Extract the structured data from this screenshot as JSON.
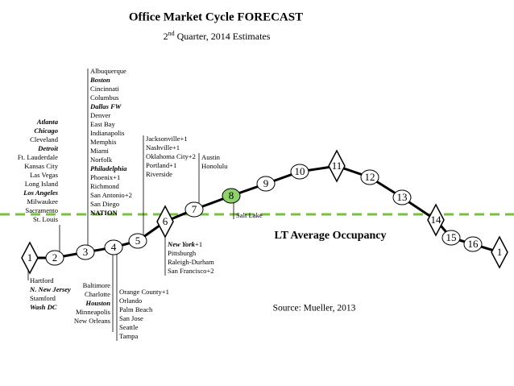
{
  "header": {
    "title": "Office Market Cycle FORECAST",
    "subtitle": {
      "number": "2",
      "suffix": "nd",
      "rest": "Quarter, 2014 Estimates"
    }
  },
  "reference_line": {
    "label": "LT Average Occupancy",
    "color": "#7ac143"
  },
  "source": "Source: Mueller, 2013",
  "points": [
    {
      "label": "1",
      "shape": "diamond"
    },
    {
      "label": "2",
      "shape": "circle"
    },
    {
      "label": "3",
      "shape": "circle"
    },
    {
      "label": "4",
      "shape": "circle"
    },
    {
      "label": "5",
      "shape": "circle"
    },
    {
      "label": "6",
      "shape": "diamond"
    },
    {
      "label": "7",
      "shape": "circle"
    },
    {
      "label": "8",
      "shape": "circle",
      "color": "#8fd16a"
    },
    {
      "label": "9",
      "shape": "circle"
    },
    {
      "label": "10",
      "shape": "circle"
    },
    {
      "label": "11",
      "shape": "diamond"
    },
    {
      "label": "12",
      "shape": "circle"
    },
    {
      "label": "13",
      "shape": "circle"
    },
    {
      "label": "14",
      "shape": "diamond"
    },
    {
      "label": "15",
      "shape": "circle"
    },
    {
      "label": "16",
      "shape": "circle"
    },
    {
      "label": "1",
      "shape": "diamond"
    }
  ],
  "groups": [
    {
      "items": [
        {
          "text": "Atlanta",
          "style": "bold-italic"
        },
        {
          "text": "Chicago",
          "style": "bold-italic"
        },
        {
          "text": "Cleveland"
        },
        {
          "text": "Detroit",
          "style": "bold-italic"
        },
        {
          "text": "Ft. Lauderdale"
        },
        {
          "text": "Kansas City"
        },
        {
          "text": "Las Vegas"
        },
        {
          "text": "Long Island"
        },
        {
          "text": "Los Angeles",
          "style": "bold-italic"
        },
        {
          "text": "Milwaukee"
        },
        {
          "text": "Sacramento"
        },
        {
          "text": "St. Louis"
        }
      ]
    },
    {
      "items": [
        {
          "text": "Hartford"
        },
        {
          "text": "N. New Jersey",
          "style": "bold-italic"
        },
        {
          "text": "Stamford"
        },
        {
          "text": "Wash DC",
          "style": "bold-italic"
        }
      ]
    },
    {
      "items": [
        {
          "text": "Albuquerque"
        },
        {
          "text": "Boston",
          "style": "bold-italic"
        },
        {
          "text": "Cincinnati"
        },
        {
          "text": "Columbus"
        },
        {
          "text": "Dallas FW",
          "style": "bold-italic"
        },
        {
          "text": "Denver"
        },
        {
          "text": "East Bay"
        },
        {
          "text": "Indianapolis"
        },
        {
          "text": "Memphis"
        },
        {
          "text": "Miami"
        },
        {
          "text": "Norfolk"
        },
        {
          "text": "Philadelphia",
          "style": "bold-italic"
        },
        {
          "text": "Phoenix+1"
        },
        {
          "text": "Richmond"
        },
        {
          "text": "San Antonio+2"
        },
        {
          "text": "San Diego"
        },
        {
          "text": "NATION",
          "style": "bold"
        }
      ]
    },
    {
      "items": [
        {
          "text": "Baltimore"
        },
        {
          "text": "Charlotte"
        },
        {
          "text": "Houston",
          "style": "bold-italic"
        },
        {
          "text": "Minneapolis"
        },
        {
          "text": "New Orleans"
        }
      ]
    },
    {
      "items": [
        {
          "text": "Orange County+1"
        },
        {
          "text": "Orlando"
        },
        {
          "text": "Palm Beach"
        },
        {
          "text": "San Jose"
        },
        {
          "text": "Seattle"
        },
        {
          "text": "Tampa"
        }
      ]
    },
    {
      "items": [
        {
          "text": "Jacksonville+1"
        },
        {
          "text": "Nashville+1"
        },
        {
          "text": "Oklahoma City+2"
        },
        {
          "text": "Portland+1"
        },
        {
          "text": "Riverside"
        }
      ]
    },
    {
      "items": [
        {
          "text": "Austin"
        },
        {
          "text": "Honolulu"
        }
      ]
    },
    {
      "items": [
        {
          "text": "New York",
          "style": "bold-italic",
          "suffix": "+1"
        },
        {
          "text": "Pittsburgh"
        },
        {
          "text": "Raleigh-Durham"
        },
        {
          "text": "San Francisco+2"
        }
      ]
    },
    {
      "items": [
        {
          "text": "Salt Lake"
        }
      ]
    }
  ]
}
